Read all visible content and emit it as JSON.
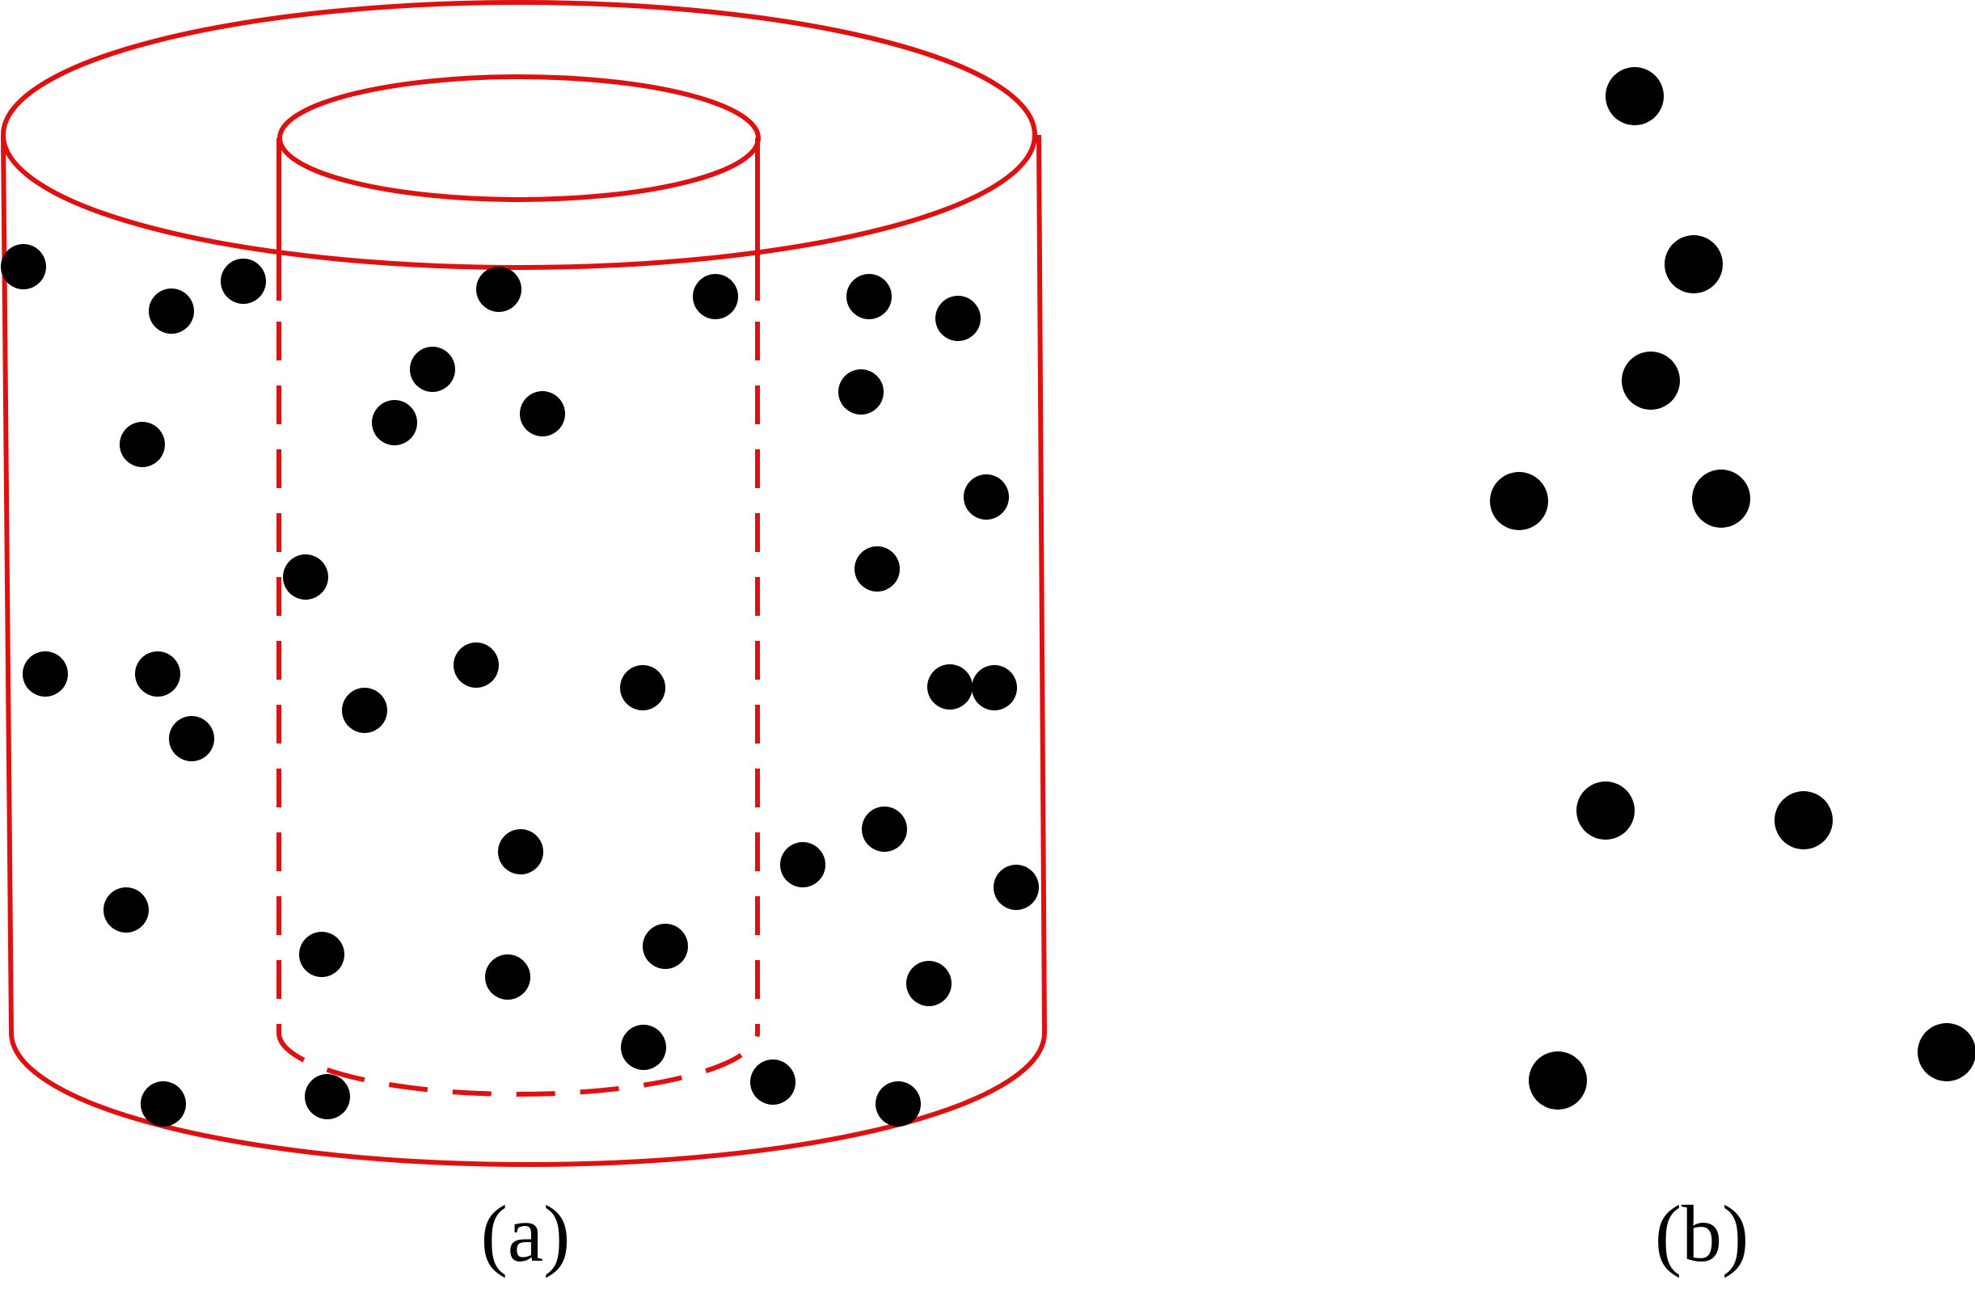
{
  "colors": {
    "outline": "#e01010",
    "dots": "#000000",
    "background": "#ffffff"
  },
  "panels": {
    "a": {
      "caption": "(a)",
      "shape": "hollow-cylinder",
      "particle_count": 37
    },
    "b": {
      "caption": "(b)",
      "particle_count": 9
    }
  }
}
